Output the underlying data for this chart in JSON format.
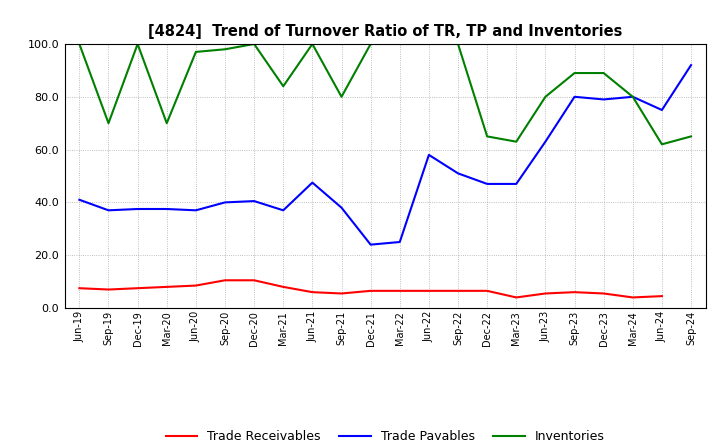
{
  "title": "[4824]  Trend of Turnover Ratio of TR, TP and Inventories",
  "x_labels": [
    "Jun-19",
    "Sep-19",
    "Dec-19",
    "Mar-20",
    "Jun-20",
    "Sep-20",
    "Dec-20",
    "Mar-21",
    "Jun-21",
    "Sep-21",
    "Dec-21",
    "Mar-22",
    "Jun-22",
    "Sep-22",
    "Dec-22",
    "Mar-23",
    "Jun-23",
    "Sep-23",
    "Dec-23",
    "Mar-24",
    "Jun-24",
    "Sep-24"
  ],
  "trade_receivables": [
    7.5,
    7.0,
    7.5,
    8.0,
    8.5,
    10.5,
    10.5,
    8.0,
    6.0,
    5.5,
    6.5,
    6.5,
    6.5,
    6.5,
    6.5,
    4.0,
    5.5,
    6.0,
    5.5,
    4.0,
    4.5,
    null
  ],
  "trade_payables": [
    41.0,
    37.0,
    37.5,
    37.5,
    37.0,
    40.0,
    40.5,
    37.0,
    47.5,
    38.0,
    24.0,
    25.0,
    58.0,
    51.0,
    47.0,
    47.0,
    63.0,
    80.0,
    79.0,
    80.0,
    75.0,
    92.0
  ],
  "inventories": [
    100.0,
    70.0,
    100.0,
    70.0,
    97.0,
    98.0,
    100.0,
    84.0,
    100.0,
    80.0,
    100.0,
    100.0,
    100.0,
    100.0,
    65.0,
    63.0,
    80.0,
    89.0,
    89.0,
    80.0,
    62.0,
    65.0
  ],
  "ylim": [
    0.0,
    100.0
  ],
  "yticks": [
    0.0,
    20.0,
    40.0,
    60.0,
    80.0,
    100.0
  ],
  "color_tr": "#FF0000",
  "color_tp": "#0000FF",
  "color_inv": "#008000",
  "legend_labels": [
    "Trade Receivables",
    "Trade Payables",
    "Inventories"
  ],
  "background_color": "#FFFFFF",
  "grid_color": "#888888"
}
